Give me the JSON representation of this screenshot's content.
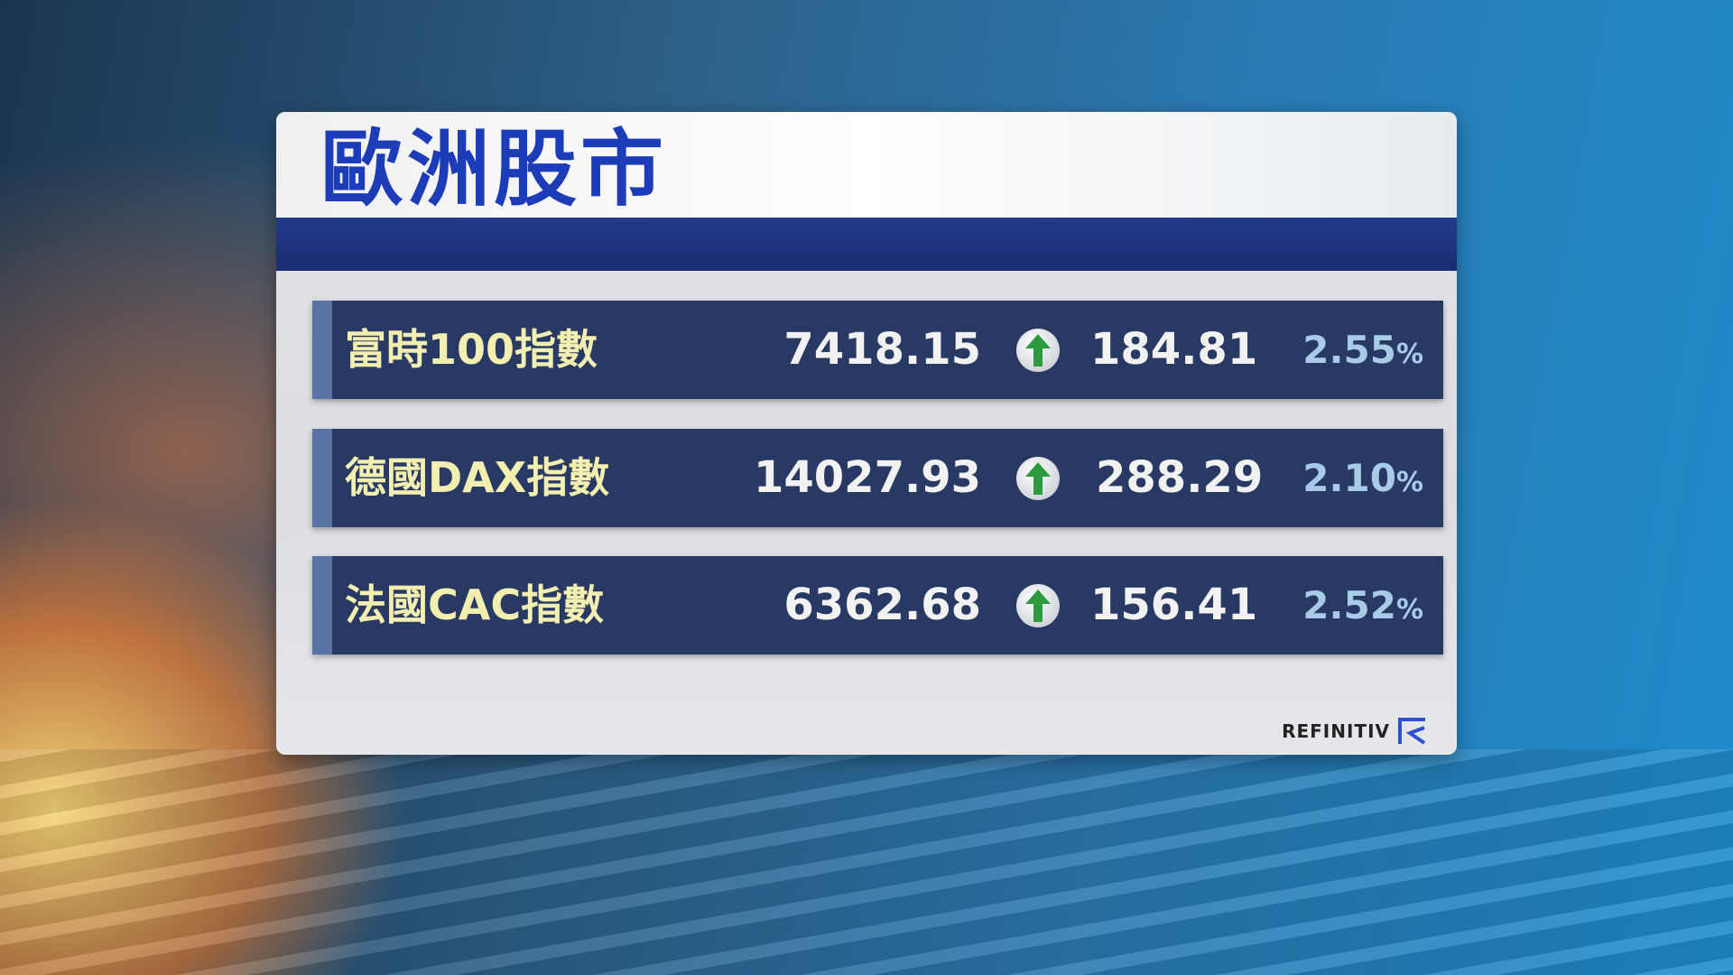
{
  "title": "歐洲股市",
  "rows": [
    {
      "name": "富時100指數",
      "value": "7418.15",
      "direction": "up",
      "change": "184.81",
      "percent": "2.55",
      "percent_sign": "%"
    },
    {
      "name": "德國DAX指數",
      "value": "14027.93",
      "direction": "up",
      "change": "288.29",
      "percent": "2.10",
      "percent_sign": "%"
    },
    {
      "name": "法國CAC指數",
      "value": "6362.68",
      "direction": "up",
      "change": "156.41",
      "percent": "2.52",
      "percent_sign": "%"
    }
  ],
  "source_logo": "REFINITIV",
  "colors": {
    "title": "#1d3cb8",
    "row_bg": "#283a64",
    "name": "#f3efb0",
    "percent": "#a9cbe8",
    "up_arrow": "#2e9a3e"
  }
}
